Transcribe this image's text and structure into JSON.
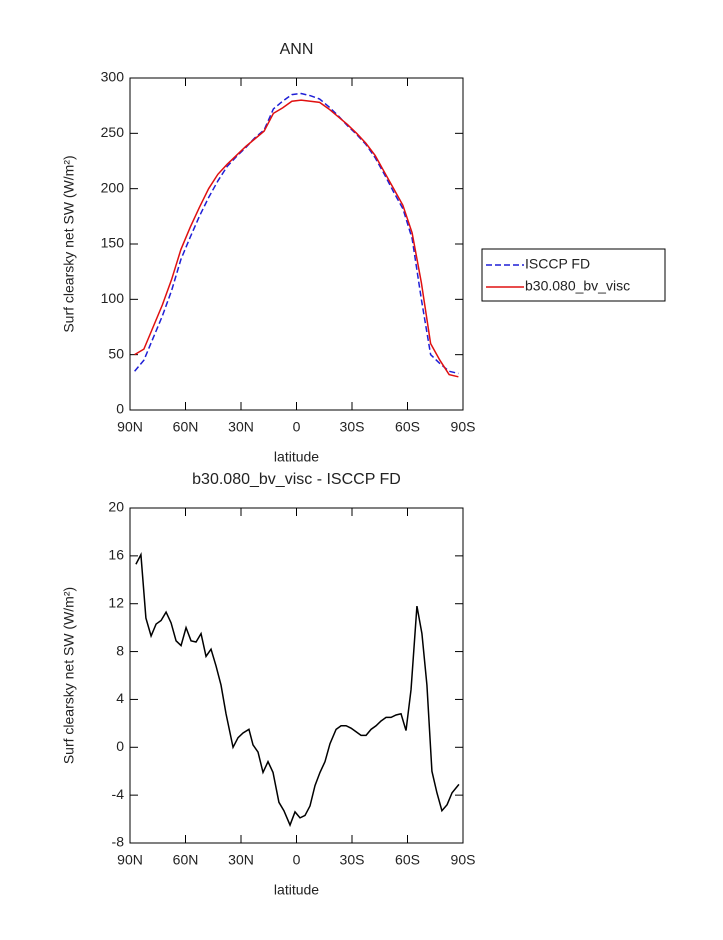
{
  "chart_data": [
    {
      "type": "line",
      "title": "ANN",
      "ylabel": "Surf clearsky net SW (W/m²)",
      "xlabel": "latitude",
      "xlim": [
        90,
        -90
      ],
      "xticks": [
        {
          "value": 90,
          "label": "90N"
        },
        {
          "value": 60,
          "label": "60N"
        },
        {
          "value": 30,
          "label": "30N"
        },
        0,
        {
          "value": -30,
          "label": "30S"
        },
        {
          "value": -60,
          "label": "60S"
        },
        {
          "value": -90,
          "label": "90S"
        }
      ],
      "ylim": [
        0,
        300
      ],
      "yticks": [
        0,
        50,
        100,
        150,
        200,
        250,
        300
      ],
      "legend": "right",
      "x": [
        87.5,
        82.5,
        77.5,
        72.5,
        67.5,
        62.5,
        57.5,
        52.5,
        47.5,
        42.5,
        37.5,
        32.5,
        27.5,
        22.5,
        17.5,
        12.5,
        7.5,
        2.5,
        -2.5,
        -7.5,
        -12.5,
        -17.5,
        -22.5,
        -27.5,
        -32.5,
        -37.5,
        -42.5,
        -47.5,
        -52.5,
        -57.5,
        -62.5,
        -67.5,
        -72.5,
        -77.5,
        -82.5,
        -87.5
      ],
      "series": [
        {
          "name": "ISCCP FD",
          "color": "#1f1fd6",
          "dashed": true,
          "values": [
            35,
            45,
            65,
            85,
            108,
            136,
            156,
            175,
            192,
            207,
            220,
            229,
            237,
            246,
            253,
            272,
            279,
            285,
            286,
            284,
            281,
            274,
            266,
            257,
            249,
            240,
            228,
            213,
            197,
            182,
            155,
            100,
            50,
            42,
            35,
            33
          ]
        },
        {
          "name": "b30.080_bv_visc",
          "color": "#e01010",
          "dashed": false,
          "values": [
            50,
            55,
            75,
            95,
            118,
            145,
            165,
            183,
            200,
            213,
            222,
            230,
            238,
            245,
            252,
            268,
            273,
            279,
            280,
            279,
            278,
            272,
            265,
            258,
            250,
            241,
            230,
            215,
            200,
            185,
            160,
            115,
            60,
            45,
            32,
            30
          ]
        }
      ]
    },
    {
      "type": "line",
      "title": "b30.080_bv_visc - ISCCP FD",
      "ylabel": "Surf clearsky net SW (W/m²)",
      "xlabel": "latitude",
      "xlim": [
        90,
        -90
      ],
      "xticks": [
        {
          "value": 90,
          "label": "90N"
        },
        {
          "value": 60,
          "label": "60N"
        },
        {
          "value": 30,
          "label": "30N"
        },
        0,
        {
          "value": -30,
          "label": "30S"
        },
        {
          "value": -60,
          "label": "60S"
        },
        {
          "value": -90,
          "label": "90S"
        }
      ],
      "ylim": [
        -8,
        20
      ],
      "yticks": [
        -8,
        -4,
        0,
        4,
        8,
        12,
        16,
        20
      ],
      "x": [
        86.8,
        84.1,
        81.4,
        78.6,
        75.9,
        73.2,
        70.5,
        67.8,
        65.1,
        62.4,
        59.7,
        57.0,
        54.3,
        51.6,
        48.9,
        46.2,
        43.5,
        40.8,
        38.1,
        34.3,
        31.6,
        28.9,
        25.7,
        23.5,
        20.8,
        18.1,
        15.4,
        12.7,
        9.5,
        6.8,
        3.5,
        0.8,
        -1.9,
        -4.6,
        -7.3,
        -10.0,
        -12.7,
        -15.4,
        -18.1,
        -21.4,
        -24.1,
        -26.8,
        -29.5,
        -32.2,
        -34.9,
        -37.6,
        -40.3,
        -43.0,
        -45.7,
        -48.4,
        -51.1,
        -53.8,
        -56.5,
        -59.2,
        -61.9,
        -65.1,
        -67.8,
        -70.5,
        -73.2,
        -75.9,
        -78.6,
        -81.4,
        -84.1,
        -87.8
      ],
      "color": "#000000",
      "values": [
        15.3,
        16.1,
        10.8,
        9.3,
        10.3,
        10.6,
        11.3,
        10.4,
        8.9,
        8.5,
        10.0,
        8.9,
        8.8,
        9.5,
        7.6,
        8.2,
        6.8,
        5.2,
        2.8,
        0,
        0.8,
        1.2,
        1.5,
        0.2,
        -0.4,
        -2.1,
        -1.2,
        -2.1,
        -4.6,
        -5.3,
        -6.5,
        -5.4,
        -5.9,
        -5.7,
        -4.9,
        -3.2,
        -2.1,
        -1.2,
        0.3,
        1.5,
        1.8,
        1.8,
        1.6,
        1.3,
        1.0,
        1.0,
        1.5,
        1.8,
        2.2,
        2.5,
        2.5,
        2.7,
        2.8,
        1.4,
        4.8,
        11.8,
        9.5,
        5.2,
        -2.0,
        -3.8,
        -5.3,
        -4.8,
        -3.8,
        -3.1
      ]
    }
  ]
}
